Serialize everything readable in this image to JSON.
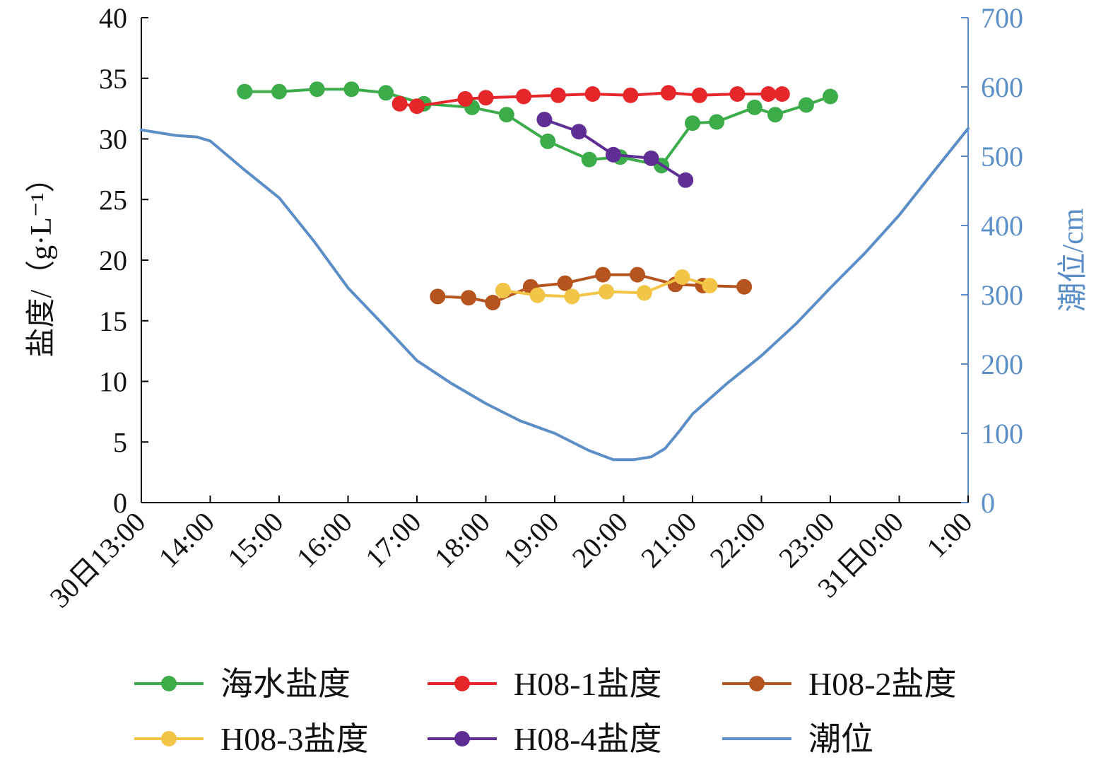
{
  "chart_data": {
    "type": "line",
    "x_axis": {
      "min": 13,
      "max": 25,
      "ticks": [
        {
          "value": 13,
          "label": "30日13:00"
        },
        {
          "value": 14,
          "label": "14:00"
        },
        {
          "value": 15,
          "label": "15:00"
        },
        {
          "value": 16,
          "label": "16:00"
        },
        {
          "value": 17,
          "label": "17:00"
        },
        {
          "value": 18,
          "label": "18:00"
        },
        {
          "value": 19,
          "label": "19:00"
        },
        {
          "value": 20,
          "label": "20:00"
        },
        {
          "value": 21,
          "label": "21:00"
        },
        {
          "value": 22,
          "label": "22:00"
        },
        {
          "value": 23,
          "label": "23:00"
        },
        {
          "value": 24,
          "label": "31日0:00"
        },
        {
          "value": 25,
          "label": "1:00"
        }
      ]
    },
    "y_left": {
      "label": "盐度/（g·L⁻¹）",
      "min": 0,
      "max": 40,
      "ticks": [
        0,
        5,
        10,
        15,
        20,
        25,
        30,
        35,
        40
      ]
    },
    "y_right": {
      "label": "潮位/cm",
      "min": 0,
      "max": 700,
      "ticks": [
        0,
        100,
        200,
        300,
        400,
        500,
        600,
        700
      ],
      "color": "#5b8ec7"
    },
    "series": [
      {
        "name": "海水盐度",
        "axis": "left",
        "color": "#3cab4a",
        "markers": true,
        "x": [
          14.5,
          15.0,
          15.55,
          16.05,
          16.55,
          17.1,
          17.8,
          18.3,
          18.9,
          19.5,
          19.95,
          20.55,
          21.0,
          21.35,
          21.9,
          22.2,
          22.65,
          23.0
        ],
        "y": [
          33.9,
          33.9,
          34.1,
          34.1,
          33.8,
          32.9,
          32.6,
          32.0,
          29.8,
          28.3,
          28.5,
          27.8,
          31.3,
          31.4,
          32.6,
          32.0,
          32.8,
          33.5
        ]
      },
      {
        "name": "H08-1盐度",
        "axis": "left",
        "color": "#e5262a",
        "markers": true,
        "x": [
          16.75,
          17.0,
          17.7,
          18.0,
          18.55,
          19.05,
          19.55,
          20.1,
          20.65,
          21.1,
          21.65,
          22.1,
          22.3
        ],
        "y": [
          32.9,
          32.7,
          33.3,
          33.4,
          33.5,
          33.6,
          33.7,
          33.6,
          33.8,
          33.6,
          33.7,
          33.7,
          33.7
        ]
      },
      {
        "name": "H08-2盐度",
        "axis": "left",
        "color": "#b5541e",
        "markers": true,
        "x": [
          17.3,
          17.75,
          18.1,
          18.65,
          19.15,
          19.7,
          20.2,
          20.75,
          21.15,
          21.75
        ],
        "y": [
          17.0,
          16.9,
          16.5,
          17.8,
          18.1,
          18.8,
          18.8,
          18.0,
          17.9,
          17.8
        ]
      },
      {
        "name": "H08-3盐度",
        "axis": "left",
        "color": "#f2c447",
        "markers": true,
        "x": [
          18.25,
          18.75,
          19.25,
          19.75,
          20.3,
          20.85,
          21.25
        ],
        "y": [
          17.5,
          17.1,
          17.0,
          17.4,
          17.3,
          18.6,
          17.9
        ]
      },
      {
        "name": "H08-4盐度",
        "axis": "left",
        "color": "#5e2e94",
        "markers": true,
        "x": [
          18.85,
          19.35,
          19.85,
          20.4,
          20.9
        ],
        "y": [
          31.6,
          30.6,
          28.7,
          28.4,
          26.6
        ]
      },
      {
        "name": "潮位",
        "axis": "right",
        "color": "#5b8ec7",
        "markers": false,
        "x": [
          13.0,
          13.5,
          13.8,
          14.0,
          14.5,
          15.0,
          15.5,
          16.0,
          16.5,
          17.0,
          17.5,
          18.0,
          18.5,
          19.0,
          19.5,
          19.85,
          20.15,
          20.4,
          20.6,
          20.8,
          21.0,
          21.5,
          22.0,
          22.5,
          23.0,
          23.5,
          24.0,
          24.5,
          25.0
        ],
        "y": [
          538,
          530,
          528,
          522,
          480,
          440,
          378,
          310,
          258,
          205,
          172,
          143,
          118,
          100,
          75,
          62,
          62,
          66,
          78,
          102,
          128,
          172,
          212,
          258,
          310,
          360,
          415,
          478,
          540
        ]
      }
    ],
    "legend": {
      "placement": "bottom",
      "order": [
        "海水盐度",
        "H08-1盐度",
        "H08-2盐度",
        "H08-3盐度",
        "H08-4盐度",
        "潮位"
      ]
    },
    "grid": false
  }
}
